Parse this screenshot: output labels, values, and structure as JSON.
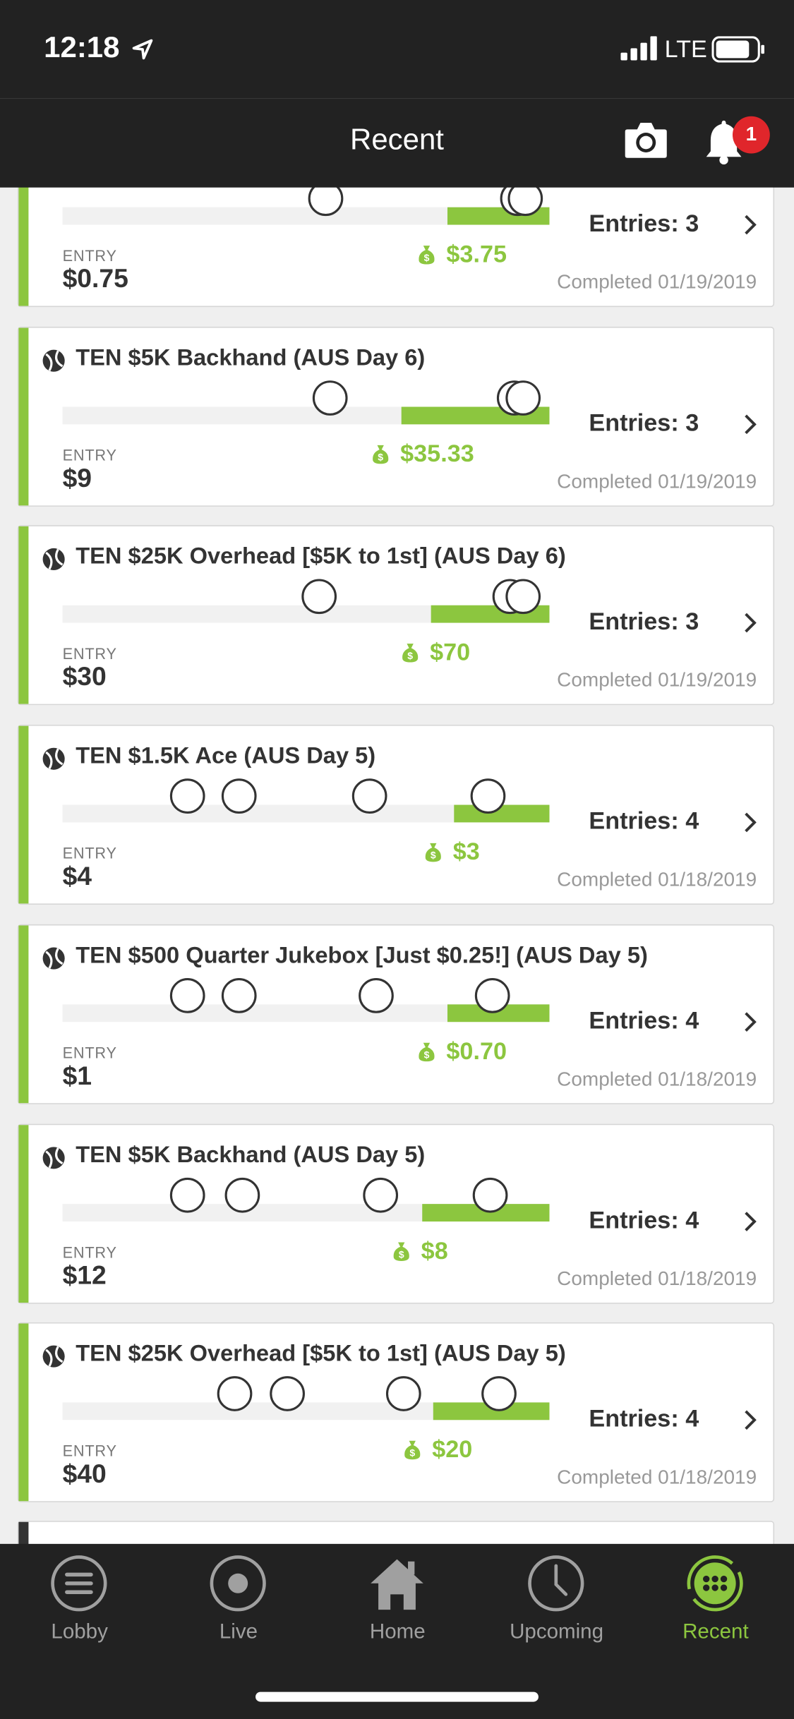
{
  "status": {
    "time": "12:18",
    "network": "LTE"
  },
  "header": {
    "title": "Recent",
    "badge": "1"
  },
  "contests": [
    {
      "entry_label": "ENTRY",
      "entry": "$0.75",
      "winnings": "$3.75",
      "entries": "Entries: 3",
      "completed": "Completed 01/19/2019"
    },
    {
      "title": "TEN $5K Backhand (AUS Day 6)",
      "entry_label": "ENTRY",
      "entry": "$9",
      "winnings": "$35.33",
      "entries": "Entries: 3",
      "completed": "Completed 01/19/2019"
    },
    {
      "title": "TEN $25K Overhead [$5K to 1st] (AUS Day 6)",
      "entry_label": "ENTRY",
      "entry": "$30",
      "winnings": "$70",
      "entries": "Entries: 3",
      "completed": "Completed 01/19/2019"
    },
    {
      "title": "TEN $1.5K Ace (AUS Day 5)",
      "entry_label": "ENTRY",
      "entry": "$4",
      "winnings": "$3",
      "entries": "Entries: 4",
      "completed": "Completed 01/18/2019"
    },
    {
      "title": "TEN $500 Quarter Jukebox [Just $0.25!] (AUS Day 5)",
      "entry_label": "ENTRY",
      "entry": "$1",
      "winnings": "$0.70",
      "entries": "Entries: 4",
      "completed": "Completed 01/18/2019"
    },
    {
      "title": "TEN $5K Backhand (AUS Day 5)",
      "entry_label": "ENTRY",
      "entry": "$12",
      "winnings": "$8",
      "entries": "Entries: 4",
      "completed": "Completed 01/18/2019"
    },
    {
      "title": "TEN $25K Overhead [$5K to 1st] (AUS Day 5)",
      "entry_label": "ENTRY",
      "entry": "$40",
      "winnings": "$20",
      "entries": "Entries: 4",
      "completed": "Completed 01/18/2019"
    }
  ],
  "tabs": [
    "Lobby",
    "Live",
    "Home",
    "Upcoming",
    "Recent"
  ]
}
